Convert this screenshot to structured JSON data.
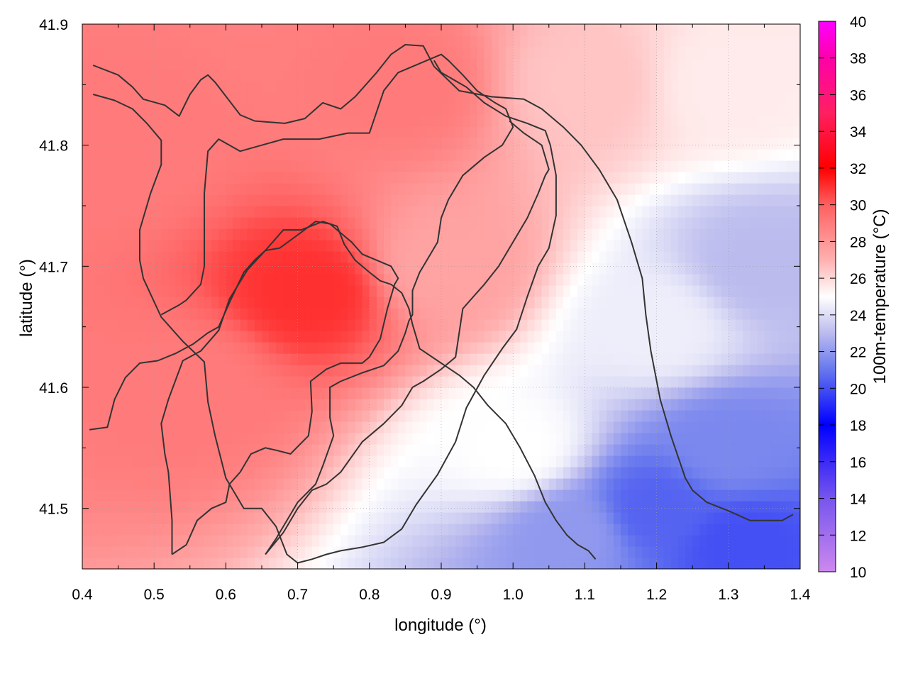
{
  "chart_data": {
    "type": "heatmap",
    "title": "",
    "xlabel": "longitude (°)",
    "ylabel": "latitude (°)",
    "colorbar_label": "100m-temperature (°C)",
    "xlim": [
      0.4,
      1.4
    ],
    "ylim": [
      41.45,
      41.9
    ],
    "x_ticks": [
      0.4,
      0.5,
      0.6,
      0.7,
      0.8,
      0.9,
      1.0,
      1.1,
      1.2,
      1.3,
      1.4
    ],
    "x_tick_labels": [
      "0.4",
      "0.5",
      "0.6",
      "0.7",
      "0.8",
      "0.9",
      "1.0",
      "1.1",
      "1.2",
      "1.3",
      "1.4"
    ],
    "y_ticks": [
      41.5,
      41.6,
      41.7,
      41.8,
      41.9
    ],
    "y_tick_labels": [
      "41.5",
      "41.6",
      "41.7",
      "41.8",
      "41.9"
    ],
    "colorbar_range": [
      10,
      40
    ],
    "colorbar_ticks": [
      10,
      12,
      14,
      16,
      18,
      20,
      22,
      24,
      26,
      28,
      30,
      32,
      34,
      36,
      38,
      40
    ],
    "colorbar_tick_labels": [
      "10",
      "12",
      "14",
      "16",
      "18",
      "20",
      "22",
      "24",
      "26",
      "28",
      "30",
      "32",
      "34",
      "36",
      "38",
      "40"
    ],
    "colormap": [
      {
        "value": 10,
        "color": "#cc88ee"
      },
      {
        "value": 14,
        "color": "#7755ee"
      },
      {
        "value": 18,
        "color": "#0000ff"
      },
      {
        "value": 21,
        "color": "#6677ee"
      },
      {
        "value": 23,
        "color": "#bbbbee"
      },
      {
        "value": 25,
        "color": "#ffffff"
      },
      {
        "value": 27,
        "color": "#ffb0b0"
      },
      {
        "value": 30,
        "color": "#ff6060"
      },
      {
        "value": 32,
        "color": "#ff0000"
      },
      {
        "value": 35,
        "color": "#ff2060"
      },
      {
        "value": 38,
        "color": "#ff00aa"
      },
      {
        "value": 40,
        "color": "#ff00ff"
      }
    ],
    "grid": true,
    "temperature_field_points": [
      {
        "lon": 0.72,
        "lat": 41.68,
        "value": 31.0
      },
      {
        "lon": 0.55,
        "lat": 41.6,
        "value": 29.0
      },
      {
        "lon": 0.45,
        "lat": 41.8,
        "value": 29.0
      },
      {
        "lon": 0.85,
        "lat": 41.85,
        "value": 29.0
      },
      {
        "lon": 0.9,
        "lat": 41.7,
        "value": 27.5
      },
      {
        "lon": 1.1,
        "lat": 41.85,
        "value": 26.5
      },
      {
        "lon": 1.3,
        "lat": 41.85,
        "value": 25.5
      },
      {
        "lon": 1.0,
        "lat": 41.55,
        "value": 25.0
      },
      {
        "lon": 1.2,
        "lat": 41.65,
        "value": 24.5
      },
      {
        "lon": 1.35,
        "lat": 41.7,
        "value": 23.0
      },
      {
        "lon": 1.3,
        "lat": 41.55,
        "value": 21.5
      },
      {
        "lon": 1.2,
        "lat": 41.5,
        "value": 20.5
      },
      {
        "lon": 1.08,
        "lat": 41.48,
        "value": 22.0
      },
      {
        "lon": 1.32,
        "lat": 41.47,
        "value": 20.0
      }
    ],
    "contours": [
      [
        [
          0.415,
          41.866
        ],
        [
          0.45,
          41.858
        ],
        [
          0.47,
          41.848
        ],
        [
          0.485,
          41.838
        ],
        [
          0.515,
          41.833
        ],
        [
          0.535,
          41.824
        ],
        [
          0.55,
          41.842
        ],
        [
          0.565,
          41.854
        ],
        [
          0.575,
          41.858
        ],
        [
          0.585,
          41.852
        ],
        [
          0.62,
          41.825
        ],
        [
          0.64,
          41.82
        ],
        [
          0.682,
          41.818
        ],
        [
          0.71,
          41.822
        ],
        [
          0.735,
          41.835
        ],
        [
          0.76,
          41.83
        ],
        [
          0.78,
          41.84
        ],
        [
          0.81,
          41.86
        ],
        [
          0.83,
          41.875
        ],
        [
          0.85,
          41.883
        ],
        [
          0.875,
          41.882
        ],
        [
          0.89,
          41.865
        ],
        [
          0.925,
          41.845
        ],
        [
          0.97,
          41.84
        ],
        [
          1.015,
          41.838
        ],
        [
          1.04,
          41.83
        ],
        [
          1.07,
          41.815
        ],
        [
          1.095,
          41.8
        ],
        [
          1.12,
          41.78
        ],
        [
          1.145,
          41.755
        ],
        [
          1.165,
          41.72
        ],
        [
          1.18,
          41.69
        ],
        [
          1.185,
          41.66
        ],
        [
          1.192,
          41.63
        ],
        [
          1.205,
          41.59
        ],
        [
          1.22,
          41.56
        ],
        [
          1.24,
          41.525
        ],
        [
          1.25,
          41.515
        ],
        [
          1.27,
          41.505
        ],
        [
          1.3,
          41.498
        ],
        [
          1.33,
          41.49
        ],
        [
          1.375,
          41.49
        ],
        [
          1.39,
          41.495
        ]
      ],
      [
        [
          0.415,
          41.842
        ],
        [
          0.445,
          41.837
        ],
        [
          0.47,
          41.83
        ],
        [
          0.49,
          41.818
        ],
        [
          0.51,
          41.804
        ],
        [
          0.51,
          41.784
        ],
        [
          0.495,
          41.76
        ],
        [
          0.48,
          41.73
        ],
        [
          0.48,
          41.705
        ],
        [
          0.485,
          41.69
        ],
        [
          0.51,
          41.658
        ],
        [
          0.54,
          41.638
        ],
        [
          0.57,
          41.621
        ],
        [
          0.575,
          41.588
        ],
        [
          0.585,
          41.56
        ],
        [
          0.6,
          41.525
        ],
        [
          0.625,
          41.5
        ],
        [
          0.65,
          41.5
        ],
        [
          0.67,
          41.485
        ],
        [
          0.685,
          41.462
        ],
        [
          0.7,
          41.455
        ],
        [
          0.72,
          41.458
        ],
        [
          0.74,
          41.462
        ],
        [
          0.76,
          41.465
        ],
        [
          0.79,
          41.468
        ],
        [
          0.82,
          41.472
        ],
        [
          0.845,
          41.483
        ],
        [
          0.865,
          41.503
        ],
        [
          0.895,
          41.528
        ],
        [
          0.92,
          41.555
        ],
        [
          0.935,
          41.583
        ],
        [
          0.96,
          41.61
        ],
        [
          0.985,
          41.632
        ],
        [
          1.005,
          41.648
        ],
        [
          1.02,
          41.675
        ],
        [
          1.035,
          41.7
        ],
        [
          1.05,
          41.715
        ],
        [
          1.06,
          41.742
        ],
        [
          1.06,
          41.775
        ],
        [
          1.052,
          41.8
        ],
        [
          1.045,
          41.812
        ],
        [
          1.02,
          41.818
        ],
        [
          0.99,
          41.824
        ],
        [
          0.96,
          41.835
        ],
        [
          0.935,
          41.848
        ],
        [
          0.9,
          41.86
        ],
        [
          0.89,
          41.87
        ]
      ],
      [
        [
          0.41,
          41.565
        ],
        [
          0.435,
          41.567
        ],
        [
          0.445,
          41.59
        ],
        [
          0.46,
          41.608
        ],
        [
          0.48,
          41.62
        ],
        [
          0.505,
          41.622
        ],
        [
          0.53,
          41.628
        ],
        [
          0.555,
          41.636
        ],
        [
          0.575,
          41.645
        ],
        [
          0.59,
          41.65
        ],
        [
          0.605,
          41.67
        ],
        [
          0.625,
          41.695
        ],
        [
          0.64,
          41.705
        ],
        [
          0.655,
          41.713
        ],
        [
          0.68,
          41.73
        ],
        [
          0.705,
          41.73
        ],
        [
          0.735,
          41.737
        ],
        [
          0.755,
          41.733
        ],
        [
          0.765,
          41.718
        ],
        [
          0.78,
          41.705
        ],
        [
          0.8,
          41.695
        ],
        [
          0.815,
          41.688
        ],
        [
          0.83,
          41.685
        ],
        [
          0.845,
          41.678
        ],
        [
          0.855,
          41.665
        ],
        [
          0.86,
          41.652
        ],
        [
          0.865,
          41.642
        ],
        [
          0.87,
          41.632
        ],
        [
          0.895,
          41.622
        ],
        [
          0.925,
          41.61
        ],
        [
          0.945,
          41.6
        ],
        [
          0.965,
          41.585
        ],
        [
          0.99,
          41.57
        ],
        [
          1.01,
          41.55
        ],
        [
          1.03,
          41.527
        ],
        [
          1.045,
          41.505
        ],
        [
          1.06,
          41.49
        ],
        [
          1.075,
          41.478
        ],
        [
          1.09,
          41.47
        ],
        [
          1.105,
          41.465
        ],
        [
          1.115,
          41.458
        ]
      ],
      [
        [
          0.525,
          41.462
        ],
        [
          0.545,
          41.47
        ],
        [
          0.56,
          41.49
        ],
        [
          0.58,
          41.5
        ],
        [
          0.6,
          41.505
        ],
        [
          0.605,
          41.52
        ],
        [
          0.62,
          41.53
        ],
        [
          0.635,
          41.545
        ],
        [
          0.655,
          41.55
        ],
        [
          0.67,
          41.548
        ],
        [
          0.69,
          41.545
        ],
        [
          0.715,
          41.56
        ],
        [
          0.72,
          41.58
        ],
        [
          0.718,
          41.605
        ],
        [
          0.74,
          41.615
        ],
        [
          0.76,
          41.62
        ],
        [
          0.79,
          41.62
        ],
        [
          0.8,
          41.625
        ],
        [
          0.815,
          41.64
        ],
        [
          0.825,
          41.665
        ],
        [
          0.835,
          41.685
        ],
        [
          0.84,
          41.69
        ],
        [
          0.83,
          41.7
        ],
        [
          0.79,
          41.71
        ],
        [
          0.775,
          41.72
        ],
        [
          0.745,
          41.735
        ],
        [
          0.725,
          41.737
        ],
        [
          0.705,
          41.728
        ],
        [
          0.675,
          41.715
        ],
        [
          0.655,
          41.713
        ],
        [
          0.63,
          41.697
        ],
        [
          0.605,
          41.673
        ],
        [
          0.59,
          41.647
        ],
        [
          0.565,
          41.63
        ],
        [
          0.54,
          41.622
        ],
        [
          0.52,
          41.59
        ],
        [
          0.51,
          41.57
        ],
        [
          0.515,
          41.545
        ],
        [
          0.52,
          41.53
        ],
        [
          0.525,
          41.49
        ],
        [
          0.525,
          41.462
        ]
      ],
      [
        [
          0.655,
          41.462
        ],
        [
          0.67,
          41.475
        ],
        [
          0.685,
          41.49
        ],
        [
          0.7,
          41.505
        ],
        [
          0.725,
          41.52
        ],
        [
          0.735,
          41.535
        ],
        [
          0.75,
          41.56
        ],
        [
          0.745,
          41.575
        ],
        [
          0.745,
          41.6
        ],
        [
          0.76,
          41.605
        ],
        [
          0.79,
          41.612
        ],
        [
          0.82,
          41.618
        ],
        [
          0.84,
          41.63
        ],
        [
          0.85,
          41.645
        ],
        [
          0.855,
          41.655
        ],
        [
          0.86,
          41.66
        ],
        [
          0.86,
          41.68
        ],
        [
          0.87,
          41.695
        ],
        [
          0.88,
          41.705
        ],
        [
          0.895,
          41.72
        ],
        [
          0.9,
          41.74
        ],
        [
          0.91,
          41.755
        ],
        [
          0.93,
          41.775
        ],
        [
          0.96,
          41.79
        ],
        [
          0.985,
          41.8
        ],
        [
          1.0,
          41.815
        ],
        [
          0.99,
          41.83
        ],
        [
          0.975,
          41.835
        ],
        [
          0.95,
          41.845
        ],
        [
          0.93,
          41.858
        ],
        [
          0.91,
          41.87
        ],
        [
          0.9,
          41.875
        ],
        [
          0.88,
          41.87
        ],
        [
          0.84,
          41.86
        ],
        [
          0.82,
          41.845
        ],
        [
          0.8,
          41.81
        ],
        [
          0.77,
          41.81
        ],
        [
          0.73,
          41.805
        ],
        [
          0.68,
          41.805
        ],
        [
          0.62,
          41.795
        ],
        [
          0.59,
          41.805
        ],
        [
          0.575,
          41.795
        ],
        [
          0.57,
          41.76
        ],
        [
          0.57,
          41.725
        ],
        [
          0.57,
          41.7
        ],
        [
          0.565,
          41.685
        ],
        [
          0.545,
          41.672
        ],
        [
          0.535,
          41.668
        ],
        [
          0.51,
          41.66
        ]
      ],
      [
        [
          0.655,
          41.462
        ],
        [
          0.68,
          41.48
        ],
        [
          0.7,
          41.5
        ],
        [
          0.72,
          41.515
        ],
        [
          0.74,
          41.52
        ],
        [
          0.76,
          41.53
        ],
        [
          0.79,
          41.555
        ],
        [
          0.82,
          41.57
        ],
        [
          0.845,
          41.585
        ],
        [
          0.86,
          41.6
        ],
        [
          0.875,
          41.605
        ],
        [
          0.9,
          41.615
        ],
        [
          0.92,
          41.625
        ],
        [
          0.925,
          41.645
        ],
        [
          0.93,
          41.665
        ],
        [
          0.945,
          41.675
        ],
        [
          0.96,
          41.685
        ],
        [
          0.98,
          41.7
        ],
        [
          1.0,
          41.72
        ],
        [
          1.02,
          41.74
        ],
        [
          1.035,
          41.76
        ],
        [
          1.045,
          41.775
        ],
        [
          1.05,
          41.78
        ],
        [
          1.04,
          41.8
        ],
        [
          1.015,
          41.81
        ],
        [
          0.995,
          41.82
        ]
      ]
    ],
    "annotations": []
  }
}
